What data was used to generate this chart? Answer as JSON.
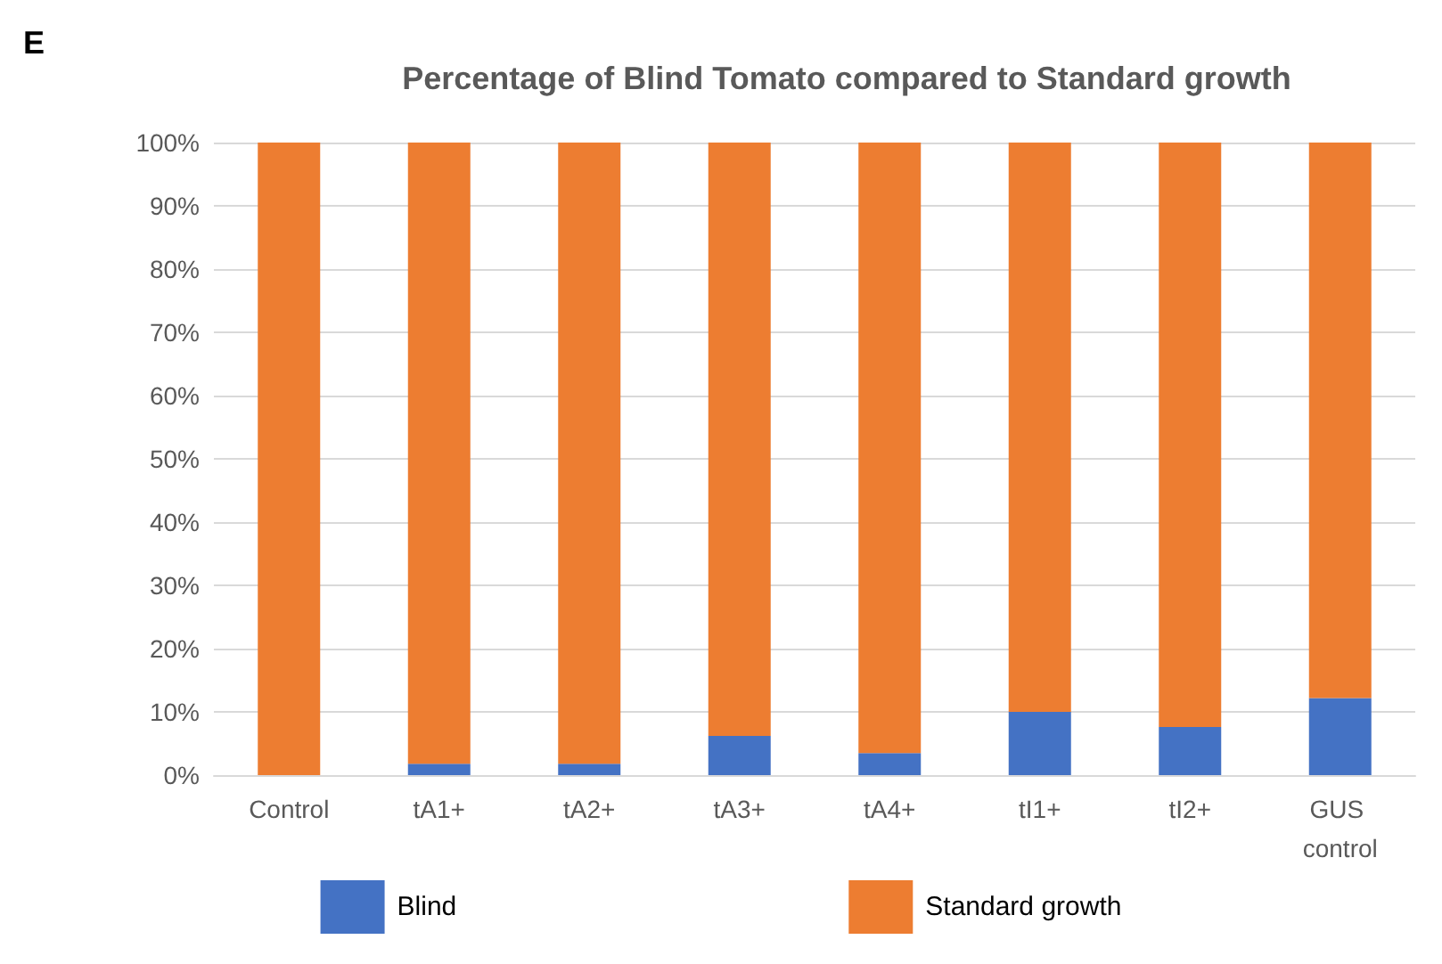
{
  "chart_data": {
    "type": "bar",
    "title": "Percentage of Blind Tomato compared to Standard growth",
    "annotations": [
      "E"
    ],
    "stacked": true,
    "categories": [
      "Control",
      "tA1+",
      "tA2+",
      "tA3+",
      "tA4+",
      "tI1+",
      "tI2+",
      "GUS control"
    ],
    "series": [
      {
        "name": "Blind",
        "color": "#4472c4",
        "values": [
          0,
          1.8,
          1.8,
          6.2,
          3.5,
          10,
          7.6,
          12.2
        ]
      },
      {
        "name": "Standard growth",
        "color": "#ed7d31",
        "values": [
          100,
          98.2,
          98.2,
          93.8,
          96.5,
          90,
          92.4,
          87.8
        ]
      }
    ],
    "ylim": [
      0,
      100
    ],
    "yticks": [
      {
        "value": 0,
        "label": "0%"
      },
      {
        "value": 10,
        "label": "10%"
      },
      {
        "value": 20,
        "label": "20%"
      },
      {
        "value": 30,
        "label": "30%"
      },
      {
        "value": 40,
        "label": "40%"
      },
      {
        "value": 50,
        "label": "50%"
      },
      {
        "value": 60,
        "label": "60%"
      },
      {
        "value": 70,
        "label": "70%"
      },
      {
        "value": 80,
        "label": "80%"
      },
      {
        "value": 90,
        "label": "90%"
      },
      {
        "value": 100,
        "label": "100%"
      }
    ],
    "grid": "y",
    "legend": "bottom"
  }
}
